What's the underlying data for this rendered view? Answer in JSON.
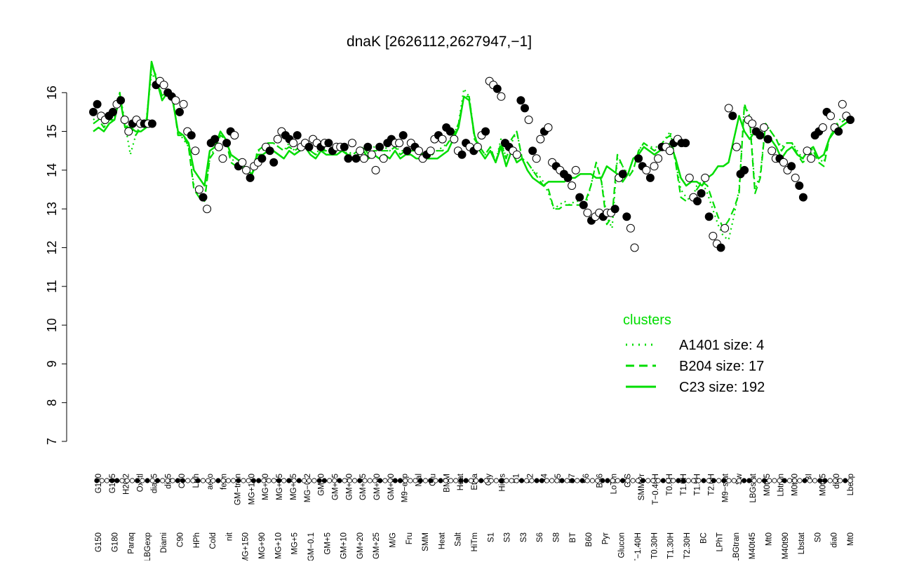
{
  "chart_data": {
    "type": "line",
    "title": "dnaK [2626112,2627947,−1]",
    "xlabel": "",
    "ylabel": "",
    "ylim": [
      7,
      16.8
    ],
    "yticks": [
      7,
      8,
      9,
      10,
      11,
      12,
      13,
      14,
      15,
      16
    ],
    "grid": false,
    "legend_placement": "bottom-right",
    "legend": {
      "title": "clusters",
      "color": "#00dd00",
      "entries": [
        {
          "label": "A1401 size: 4",
          "style": "dotted"
        },
        {
          "label": "B204 size: 17",
          "style": "dashed"
        },
        {
          "label": "C23 size: 192",
          "style": "solid"
        }
      ]
    },
    "x_labels_top": [
      "G150",
      "G135",
      "H2O2",
      "Oxctl",
      "dia15",
      "dia5",
      "C30",
      "LPh",
      "aero",
      "ferm",
      "GM−tran",
      "MG+120",
      "MG+60",
      "MG+45",
      "MG+25",
      "MG−0.2",
      "GM+0",
      "GM+15",
      "GM+30",
      "GM+45",
      "GM+60",
      "GM+90",
      "M9−exp",
      "Mal",
      "Glu",
      "BMM",
      "Heat",
      "Etha",
      "Gly",
      "HiOs",
      "S1",
      "S2",
      "S4",
      "S5",
      "S7",
      "S6",
      "B36",
      "LoTm",
      "G/S",
      "SMMPr",
      "T−0.40H",
      "T0.0H",
      "T1.0H",
      "T1.5H",
      "T2.0H",
      "M9−stat",
      "Sw",
      "LBGstat",
      "M0t45",
      "Lbtran",
      "M0t90",
      "BI",
      "M0t45",
      "dia0",
      "Lbexp"
    ],
    "x_labels_bottom": [
      "G150",
      "G180",
      "Paraq",
      "LBGexp",
      "Diami",
      "C90",
      "HPh",
      "Cold",
      "nit",
      "MG+150",
      "MG+90",
      "MG+10",
      "MG+5",
      "GM−0.1",
      "GM+5",
      "GM+10",
      "GM+20",
      "GM+25",
      "M/G",
      "Fru",
      "SMM",
      "Heat",
      "Salt",
      "HiTm",
      "S1",
      "S3",
      "S3",
      "S6",
      "S8",
      "BT",
      "B60",
      "Pyr",
      "Glucon",
      "T−1.40H",
      "T0.30H",
      "T1.30H",
      "T2.30H",
      "BC",
      "LPhT",
      "LBGtran",
      "M40t45",
      "Mt0",
      "M40t90",
      "Lbstat",
      "S0",
      "dia0",
      "Mt0"
    ],
    "series": [
      {
        "name": "C23 size: 192",
        "style": "solid",
        "color": "#00dd00",
        "values": [
          15.0,
          15.1,
          15.0,
          15.2,
          15.3,
          15.9,
          15.1,
          15.1,
          15.0,
          15.0,
          15.1,
          16.8,
          16.3,
          15.8,
          16.0,
          15.8,
          15.0,
          14.9,
          14.7,
          14.0,
          13.8,
          13.6,
          14.5,
          14.6,
          15.0,
          14.8,
          14.4,
          14.3,
          14.2,
          14.0,
          13.9,
          14.4,
          14.4,
          14.5,
          14.5,
          14.4,
          14.3,
          14.5,
          14.4,
          14.5,
          14.6,
          14.4,
          14.3,
          14.5,
          14.4,
          14.4,
          14.4,
          14.5,
          14.4,
          14.3,
          14.4,
          14.5,
          14.3,
          14.4,
          14.3,
          14.4,
          14.3,
          14.5,
          14.3,
          14.4,
          14.4,
          14.3,
          14.3,
          14.3,
          14.3,
          14.3,
          14.4,
          14.5,
          14.8,
          15.1,
          15.9,
          15.8,
          14.9,
          14.5,
          14.3,
          14.5,
          14.2,
          14.6,
          14.1,
          14.5,
          14.2,
          14.3,
          14.0,
          13.8,
          13.7,
          13.6,
          13.7,
          13.7,
          13.7,
          13.7,
          13.8,
          13.8,
          13.9,
          13.9,
          13.9,
          13.8,
          13.8,
          14.1,
          14.0,
          13.9,
          13.7,
          13.9,
          14.3,
          14.4,
          14.6,
          14.5,
          14.4,
          14.5,
          14.6,
          14.7,
          14.3,
          13.8,
          13.6,
          13.7,
          13.7,
          13.6,
          13.8,
          13.9,
          14.1,
          14.1,
          14.2,
          14.8,
          15.4,
          15.0,
          14.8,
          15.0,
          15.0,
          14.8,
          14.8,
          14.6,
          14.3,
          14.5,
          14.6,
          14.4,
          14.3,
          14.5,
          14.6,
          14.3,
          14.4,
          14.8,
          15.0,
          15.1,
          15.2,
          15.3
        ]
      },
      {
        "name": "B204 size: 17",
        "style": "dashed",
        "color": "#00dd00",
        "values": [
          15.2,
          15.3,
          15.1,
          15.3,
          15.3,
          16.0,
          15.1,
          15.2,
          14.9,
          15.1,
          15.2,
          16.7,
          16.4,
          15.9,
          16.0,
          15.9,
          14.9,
          14.9,
          14.6,
          13.5,
          13.3,
          13.2,
          14.3,
          14.5,
          14.9,
          14.8,
          14.2,
          14.1,
          14.1,
          13.9,
          13.8,
          14.5,
          14.6,
          14.7,
          14.7,
          14.6,
          14.5,
          14.6,
          14.5,
          14.6,
          14.7,
          14.5,
          14.4,
          14.5,
          14.5,
          14.4,
          14.4,
          14.6,
          14.4,
          14.4,
          14.5,
          14.6,
          14.4,
          14.5,
          14.5,
          14.5,
          14.5,
          14.6,
          14.4,
          14.5,
          14.5,
          14.5,
          14.4,
          14.5,
          14.4,
          14.5,
          14.5,
          14.7,
          14.9,
          15.2,
          15.9,
          15.9,
          14.8,
          14.6,
          14.4,
          14.6,
          14.2,
          14.7,
          14.3,
          14.8,
          15.0,
          14.3,
          14.2,
          14.0,
          13.8,
          13.6,
          13.5,
          13.0,
          13.0,
          13.1,
          13.1,
          13.1,
          13.1,
          13.2,
          13.6,
          14.2,
          13.7,
          12.6,
          12.8,
          14.4,
          14.1,
          13.8,
          14.0,
          14.5,
          14.7,
          14.6,
          14.5,
          14.6,
          14.8,
          14.9,
          14.2,
          13.3,
          13.2,
          13.3,
          13.5,
          13.7,
          13.6,
          13.2,
          12.8,
          12.5,
          12.7,
          13.0,
          13.4,
          15.7,
          15.3,
          13.4,
          13.8,
          15.2,
          15.0,
          14.8,
          14.5,
          14.7,
          14.7,
          14.4,
          14.2,
          14.3,
          14.5,
          14.2,
          14.1,
          14.8,
          15.1,
          15.2,
          15.3,
          15.4
        ]
      },
      {
        "name": "A1401 size: 4",
        "style": "dotted",
        "color": "#00dd00",
        "values": [
          15.3,
          15.4,
          15.2,
          15.5,
          15.4,
          16.0,
          15.2,
          14.4,
          14.9,
          15.2,
          15.3,
          16.5,
          16.3,
          15.9,
          16.1,
          15.8,
          15.0,
          14.8,
          14.6,
          13.6,
          13.4,
          13.3,
          14.3,
          14.6,
          15.0,
          14.8,
          14.3,
          14.2,
          14.1,
          14.0,
          13.9,
          14.5,
          14.5,
          14.7,
          14.7,
          14.6,
          14.5,
          14.7,
          14.5,
          14.6,
          14.7,
          14.5,
          14.4,
          14.6,
          14.5,
          14.5,
          14.5,
          14.6,
          14.5,
          14.4,
          14.5,
          14.6,
          14.5,
          14.6,
          14.5,
          14.6,
          14.5,
          14.6,
          14.5,
          14.5,
          14.5,
          14.5,
          14.5,
          14.5,
          14.5,
          14.5,
          14.6,
          14.7,
          14.9,
          15.2,
          16.1,
          15.9,
          14.9,
          14.6,
          14.4,
          14.6,
          14.2,
          14.8,
          14.3,
          14.7,
          15.0,
          14.3,
          14.2,
          14.0,
          13.9,
          13.7,
          13.4,
          13.0,
          13.1,
          13.2,
          13.1,
          13.2,
          13.2,
          13.1,
          13.6,
          14.2,
          13.7,
          12.8,
          12.5,
          14.3,
          14.1,
          13.9,
          14.0,
          14.5,
          14.7,
          14.6,
          14.6,
          14.6,
          14.8,
          15.0,
          14.2,
          13.5,
          13.3,
          13.2,
          13.6,
          13.7,
          13.4,
          13.0,
          12.6,
          12.3,
          12.2,
          12.8,
          13.5,
          15.7,
          15.4,
          13.5,
          13.9,
          15.2,
          15.0,
          14.8,
          14.6,
          14.7,
          14.7,
          14.5,
          14.3,
          14.3,
          14.6,
          14.3,
          14.2,
          14.8,
          15.1,
          15.3,
          15.4,
          15.5
        ]
      }
    ],
    "points": {
      "note_filled": "filled circles and open circles are sample expression values",
      "values": [
        15.5,
        15.7,
        15.4,
        15.3,
        15.4,
        15.5,
        15.7,
        15.8,
        15.3,
        15.0,
        15.2,
        15.3,
        15.2,
        15.2,
        15.2,
        15.2,
        16.2,
        16.3,
        16.2,
        16.0,
        15.9,
        15.8,
        15.5,
        15.7,
        15.0,
        14.9,
        14.5,
        13.5,
        13.3,
        13.0,
        14.7,
        14.8,
        14.6,
        14.3,
        14.7,
        15.0,
        14.9,
        14.1,
        14.2,
        14.0,
        13.8,
        14.1,
        14.2,
        14.3,
        14.6,
        14.5,
        14.2,
        14.8,
        15.0,
        14.9,
        14.8,
        14.7,
        14.9,
        14.6,
        14.7,
        14.6,
        14.8,
        14.7,
        14.6,
        14.7,
        14.7,
        14.5,
        14.6,
        14.6,
        14.6,
        14.3,
        14.7,
        14.3,
        14.5,
        14.3,
        14.6,
        14.4,
        14.0,
        14.6,
        14.3,
        14.7,
        14.8,
        14.7,
        14.7,
        14.9,
        14.5,
        14.7,
        14.6,
        14.5,
        14.3,
        14.4,
        14.5,
        14.8,
        14.9,
        14.8,
        15.1,
        15.0,
        14.8,
        14.5,
        14.4,
        14.7,
        14.6,
        14.5,
        14.6,
        14.9,
        15.0,
        16.3,
        16.2,
        16.1,
        15.9,
        14.7,
        14.6,
        14.5,
        14.4,
        15.8,
        15.6,
        15.3,
        14.5,
        14.3,
        14.8,
        15.0,
        15.1,
        14.2,
        14.1,
        14.0,
        13.9,
        13.8,
        13.6,
        14.0,
        13.3,
        13.1,
        12.9,
        12.7,
        12.8,
        12.9,
        12.8,
        12.9,
        12.9,
        13.0,
        13.8,
        13.9,
        12.8,
        12.5,
        12.0,
        14.3,
        14.1,
        14.0,
        13.8,
        14.1,
        14.3,
        14.6,
        14.6,
        14.5,
        14.7,
        14.8,
        14.7,
        14.7,
        13.8,
        13.3,
        13.2,
        13.4,
        13.8,
        12.8,
        12.3,
        12.1,
        12.0,
        12.5,
        15.6,
        15.4,
        14.6,
        13.9,
        14.0,
        15.3,
        15.2,
        15.0,
        14.9,
        15.1,
        14.8,
        14.5,
        14.3,
        14.3,
        14.2,
        14.0,
        14.1,
        13.8,
        13.6,
        13.3,
        14.5,
        14.3,
        14.9,
        15.0,
        15.1,
        15.5,
        15.4,
        15.1,
        15.0,
        15.7,
        15.4,
        15.3
      ]
    }
  }
}
